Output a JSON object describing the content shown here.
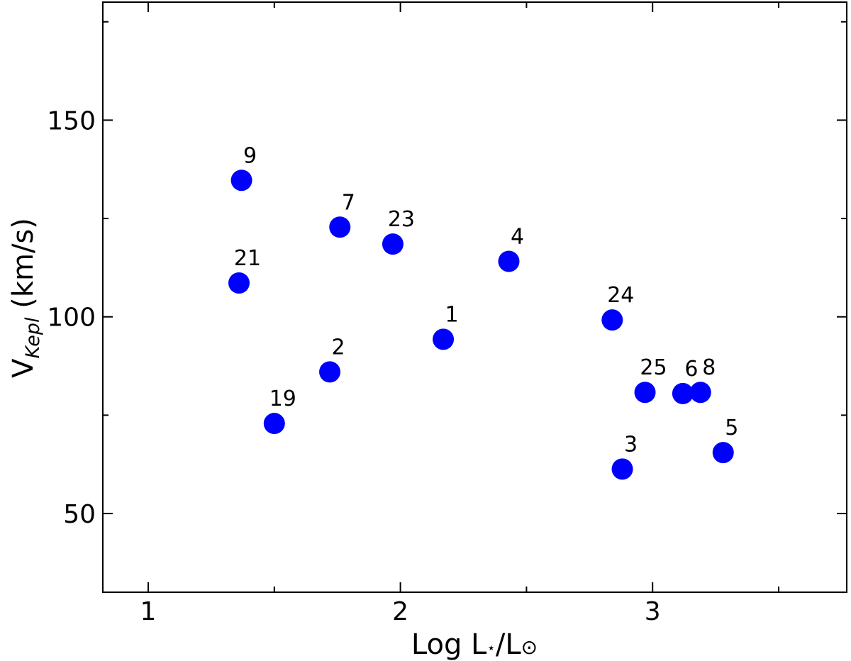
{
  "chart_data": {
    "type": "scatter",
    "title": "",
    "xlabel": "Log L⋆/L⊙",
    "xlabel_parts": {
      "main": "Log L",
      "star": "⋆",
      "sep": "/L",
      "sun": "⊙"
    },
    "ylabel": "V_Kepl (km/s)",
    "ylabel_parts": {
      "main": "V",
      "sub": "Kepl",
      "unit": " (km/s)"
    },
    "xlim": [
      0.82,
      3.77
    ],
    "ylim": [
      30,
      180
    ],
    "x_ticks": [
      1,
      2,
      3
    ],
    "x_tick_labels": [
      "1",
      "2",
      "3"
    ],
    "x_minor_ticks": [
      1.5,
      2.5,
      3.5
    ],
    "y_ticks": [
      50,
      100,
      150
    ],
    "y_tick_labels": [
      "50",
      "100",
      "150"
    ],
    "y_minor_ticks": [
      75,
      125,
      175
    ],
    "grid": false,
    "marker_color": "#0000ff",
    "points": [
      {
        "label": "9",
        "x": 1.37,
        "y": 134.7
      },
      {
        "label": "21",
        "x": 1.36,
        "y": 108.6
      },
      {
        "label": "7",
        "x": 1.76,
        "y": 122.8
      },
      {
        "label": "23",
        "x": 1.97,
        "y": 118.5
      },
      {
        "label": "2",
        "x": 1.72,
        "y": 86.0
      },
      {
        "label": "19",
        "x": 1.5,
        "y": 72.9
      },
      {
        "label": "1",
        "x": 2.17,
        "y": 94.3
      },
      {
        "label": "4",
        "x": 2.43,
        "y": 114.1
      },
      {
        "label": "24",
        "x": 2.84,
        "y": 99.2
      },
      {
        "label": "25",
        "x": 2.97,
        "y": 80.8
      },
      {
        "label": "6",
        "x": 3.12,
        "y": 80.5
      },
      {
        "label": "8",
        "x": 3.19,
        "y": 80.8
      },
      {
        "label": "3",
        "x": 2.88,
        "y": 61.3
      },
      {
        "label": "5",
        "x": 3.28,
        "y": 65.5
      }
    ]
  }
}
